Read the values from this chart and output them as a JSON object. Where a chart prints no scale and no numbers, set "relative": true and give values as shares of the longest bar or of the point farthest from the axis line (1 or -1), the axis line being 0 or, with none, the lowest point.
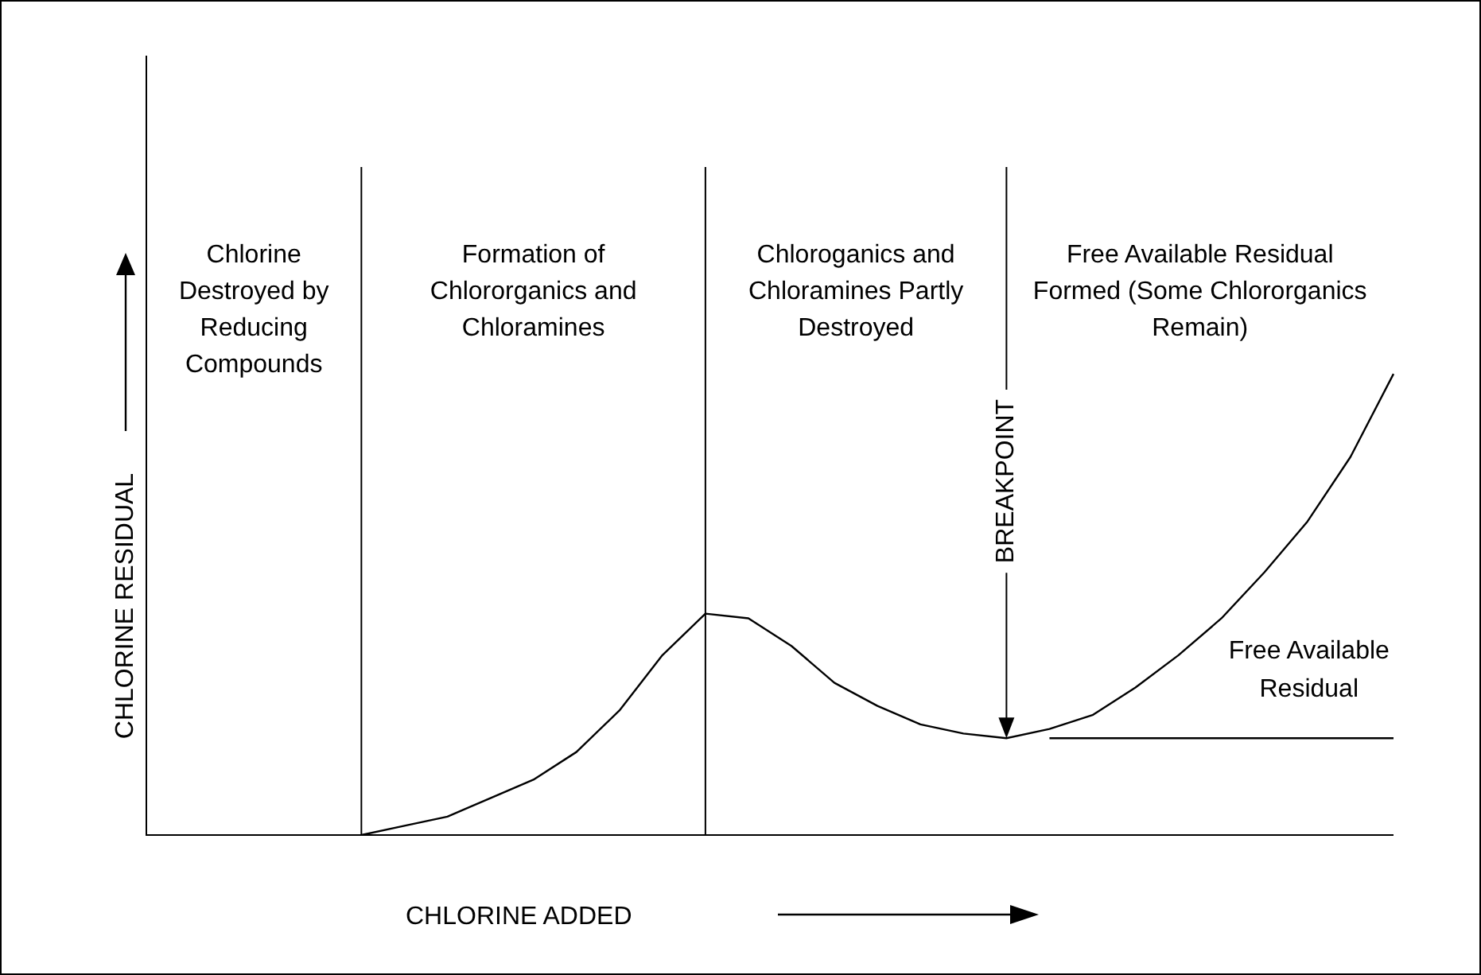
{
  "chart_data": {
    "type": "line",
    "relative": true,
    "xlabel": "CHLORINE ADDED",
    "ylabel": "CHLORINE RESIDUAL",
    "categories": [
      null,
      null,
      null,
      null,
      null,
      null,
      null,
      null,
      null,
      null,
      null,
      null,
      null,
      null,
      null,
      null,
      null,
      null,
      null,
      null,
      null,
      null,
      null,
      null,
      null,
      null,
      null,
      null,
      null,
      null
    ],
    "series": [
      {
        "color": "#000000",
        "values": [
          null,
          null,
          null,
          null,
          null,
          0,
          0.02,
          0.04,
          0.08,
          0.12,
          0.18,
          0.27,
          0.39,
          0.48,
          0.47,
          0.41,
          0.33,
          0.28,
          0.24,
          0.22,
          0.21,
          0.23,
          0.26,
          0.32,
          0.39,
          0.47,
          0.57,
          0.68,
          0.82,
          1
        ]
      },
      {
        "name": "Free Available Residual",
        "color": "#000000",
        "values": [
          null,
          null,
          null,
          null,
          null,
          null,
          null,
          null,
          null,
          null,
          null,
          null,
          null,
          null,
          null,
          null,
          null,
          null,
          null,
          null,
          null,
          0.21,
          0.21,
          0.21,
          0.21,
          0.21,
          0.21,
          0.21,
          0.21,
          0.21
        ]
      }
    ],
    "annotations": [
      "Chlorine Destroyed by Reducing Compounds",
      "Formation of Chlororganics and Chloramines",
      "Chloroganics and Chloramines Partly Destroyed",
      "Free Available Residual Formed (Some Chlororganics Remain)",
      "BREAKPOINT"
    ],
    "marker": "none",
    "line_style": "solid"
  }
}
